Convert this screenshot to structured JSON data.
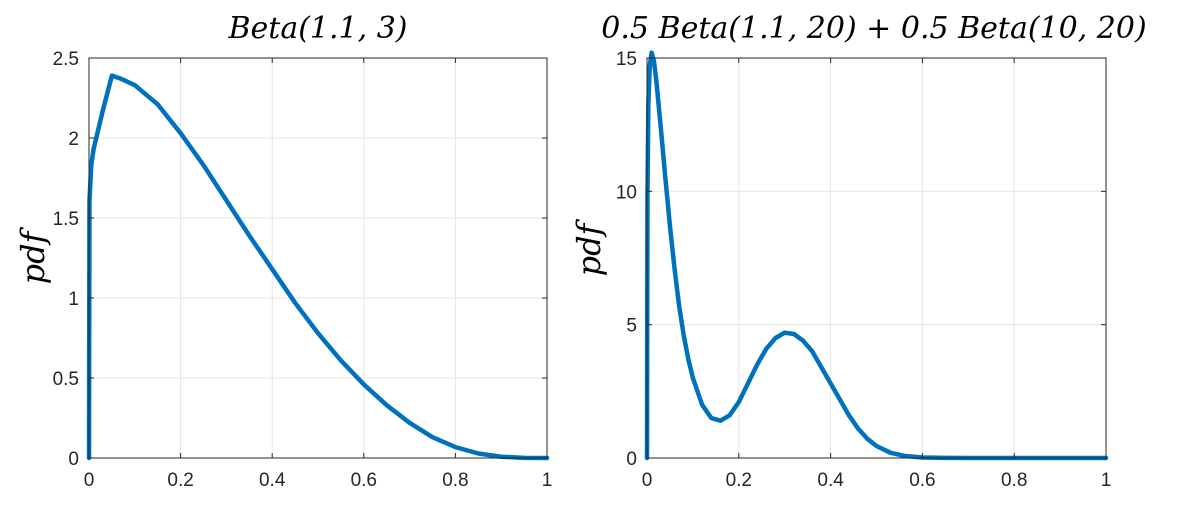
{
  "chart_data": [
    {
      "type": "line",
      "title": "Beta(1.1, 3)",
      "xlabel": "",
      "ylabel": "pdf",
      "xlim": [
        0,
        1
      ],
      "ylim": [
        0,
        2.5
      ],
      "grid": true,
      "xticks": [
        0,
        0.2,
        0.4,
        0.6,
        0.8,
        1
      ],
      "xtick_labels": [
        "0",
        "0.2",
        "0.4",
        "0.6",
        "0.8",
        "1"
      ],
      "yticks": [
        0,
        0.5,
        1,
        1.5,
        2,
        2.5
      ],
      "ytick_labels": [
        "0",
        "0.5",
        "1",
        "1.5",
        "2",
        "2.5"
      ],
      "series": [
        {
          "color": "#0072bd",
          "x": [
            0,
            0.001,
            0.005,
            0.01,
            0.02,
            0.03,
            0.05,
            0.07,
            0.1,
            0.15,
            0.2,
            0.25,
            0.3,
            0.35,
            0.4,
            0.45,
            0.5,
            0.55,
            0.6,
            0.65,
            0.7,
            0.75,
            0.8,
            0.85,
            0.9,
            0.95,
            1
          ],
          "y": [
            0,
            1.61,
            1.83,
            1.93,
            2.05,
            2.17,
            2.39,
            2.37,
            2.33,
            2.21,
            2.03,
            1.83,
            1.61,
            1.39,
            1.18,
            0.97,
            0.78,
            0.61,
            0.46,
            0.33,
            0.22,
            0.13,
            0.068,
            0.028,
            0.008,
            0.001,
            0
          ]
        }
      ]
    },
    {
      "type": "line",
      "title": "0.5 Beta(1.1, 20) + 0.5 Beta(10, 20)",
      "xlabel": "",
      "ylabel": "pdf",
      "xlim": [
        0,
        1
      ],
      "ylim": [
        0,
        15
      ],
      "grid": true,
      "xticks": [
        0,
        0.2,
        0.4,
        0.6,
        0.8,
        1
      ],
      "xtick_labels": [
        "0",
        "0.2",
        "0.4",
        "0.6",
        "0.8",
        "1"
      ],
      "yticks": [
        0,
        5,
        10,
        15
      ],
      "ytick_labels": [
        "0",
        "5",
        "10",
        "15"
      ],
      "series": [
        {
          "color": "#0072bd",
          "x": [
            0,
            0.001,
            0.003,
            0.006,
            0.01,
            0.015,
            0.02,
            0.03,
            0.04,
            0.05,
            0.06,
            0.07,
            0.08,
            0.09,
            0.1,
            0.12,
            0.14,
            0.16,
            0.18,
            0.2,
            0.22,
            0.24,
            0.26,
            0.28,
            0.3,
            0.32,
            0.34,
            0.36,
            0.38,
            0.4,
            0.42,
            0.44,
            0.46,
            0.48,
            0.5,
            0.53,
            0.56,
            0.6,
            0.65,
            0.7,
            0.8,
            0.9,
            1
          ],
          "y": [
            0,
            9.9,
            13.3,
            14.7,
            15.2,
            14.9,
            14.2,
            12.4,
            10.5,
            8.7,
            7.1,
            5.7,
            4.6,
            3.7,
            3.0,
            2.0,
            1.5,
            1.4,
            1.6,
            2.1,
            2.8,
            3.5,
            4.1,
            4.5,
            4.7,
            4.65,
            4.4,
            4.0,
            3.4,
            2.8,
            2.2,
            1.6,
            1.1,
            0.72,
            0.45,
            0.2,
            0.08,
            0.02,
            0.005,
            0.001,
            0,
            0,
            0
          ]
        }
      ]
    }
  ]
}
